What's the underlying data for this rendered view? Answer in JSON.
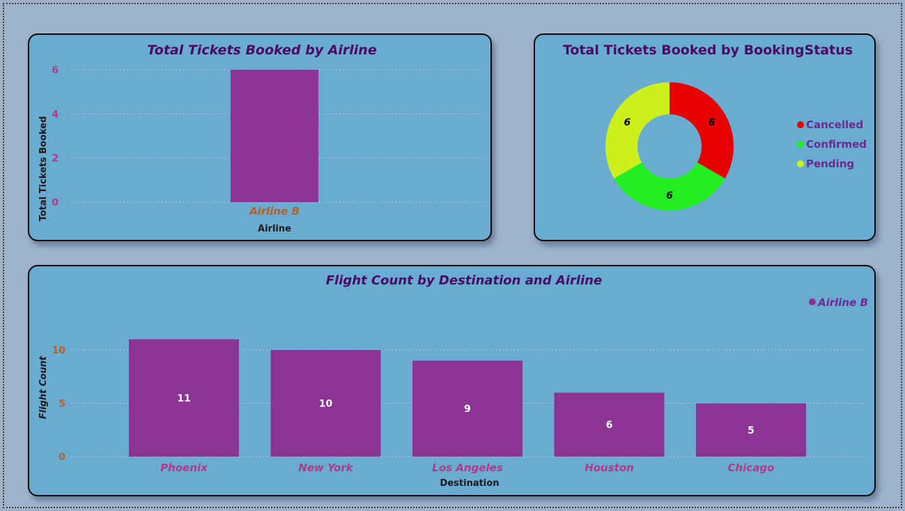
{
  "chart_data": [
    {
      "type": "bar",
      "title": "Total Tickets Booked by Airline",
      "xlabel": "Airline",
      "ylabel": "Total Tickets Booked",
      "categories": [
        "Airline B"
      ],
      "values": [
        6
      ],
      "yticks": [
        0,
        2,
        4,
        6
      ],
      "ylim": [
        0,
        6
      ],
      "grid": true,
      "colors": {
        "bar": "#8b3494"
      }
    },
    {
      "type": "pie",
      "title": "Total Tickets Booked by BookingStatus",
      "categories": [
        "Cancelled",
        "Confirmed",
        "Pending"
      ],
      "values": [
        6,
        6,
        6
      ],
      "legend": "right",
      "colors": [
        "#e60000",
        "#22ee22",
        "#ccf01e"
      ]
    },
    {
      "type": "bar",
      "title": "Flight Count by Destination and Airline",
      "xlabel": "Destination",
      "ylabel": "Flight Count",
      "categories": [
        "Phoenix",
        "New York",
        "Los Angeles",
        "Houston",
        "Chicago"
      ],
      "series": [
        {
          "name": "Airline B",
          "values": [
            11,
            10,
            9,
            6,
            5
          ]
        }
      ],
      "yticks": [
        0,
        5,
        10
      ],
      "ylim": [
        0,
        12
      ],
      "grid": true,
      "legend": "top-right",
      "colors": {
        "bar": "#8b3494"
      }
    }
  ]
}
